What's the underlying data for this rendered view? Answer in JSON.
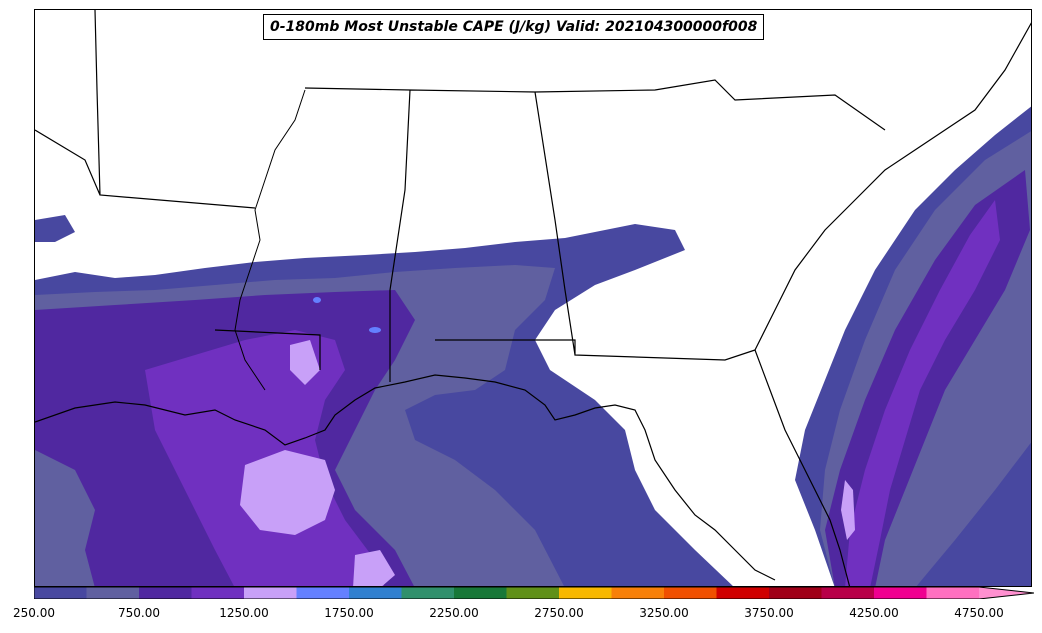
{
  "title": "0-180mb Most Unstable CAPE (J/kg) Valid: 202104300000f008",
  "colorbar": {
    "colors": [
      "#4848a0",
      "#6060a0",
      "#5028a0",
      "#7030c0",
      "#c8a0f8",
      "#6480ff",
      "#3080d0",
      "#30906c",
      "#187838",
      "#609018",
      "#f8b800",
      "#f88008",
      "#f05000",
      "#d00000",
      "#a00018",
      "#b80048",
      "#f00090",
      "#ff70c0"
    ],
    "extend_color": "#ff90d0",
    "tick_labels": [
      "250.00",
      "750.00",
      "1250.00",
      "1750.00",
      "2250.00",
      "2750.00",
      "3250.00",
      "3750.00",
      "4250.00",
      "4750.00"
    ]
  },
  "map": {
    "region": "Southeastern United States and Gulf of Mexico",
    "colors": {
      "land_background": "#ffffff",
      "borders": "#000000"
    }
  }
}
